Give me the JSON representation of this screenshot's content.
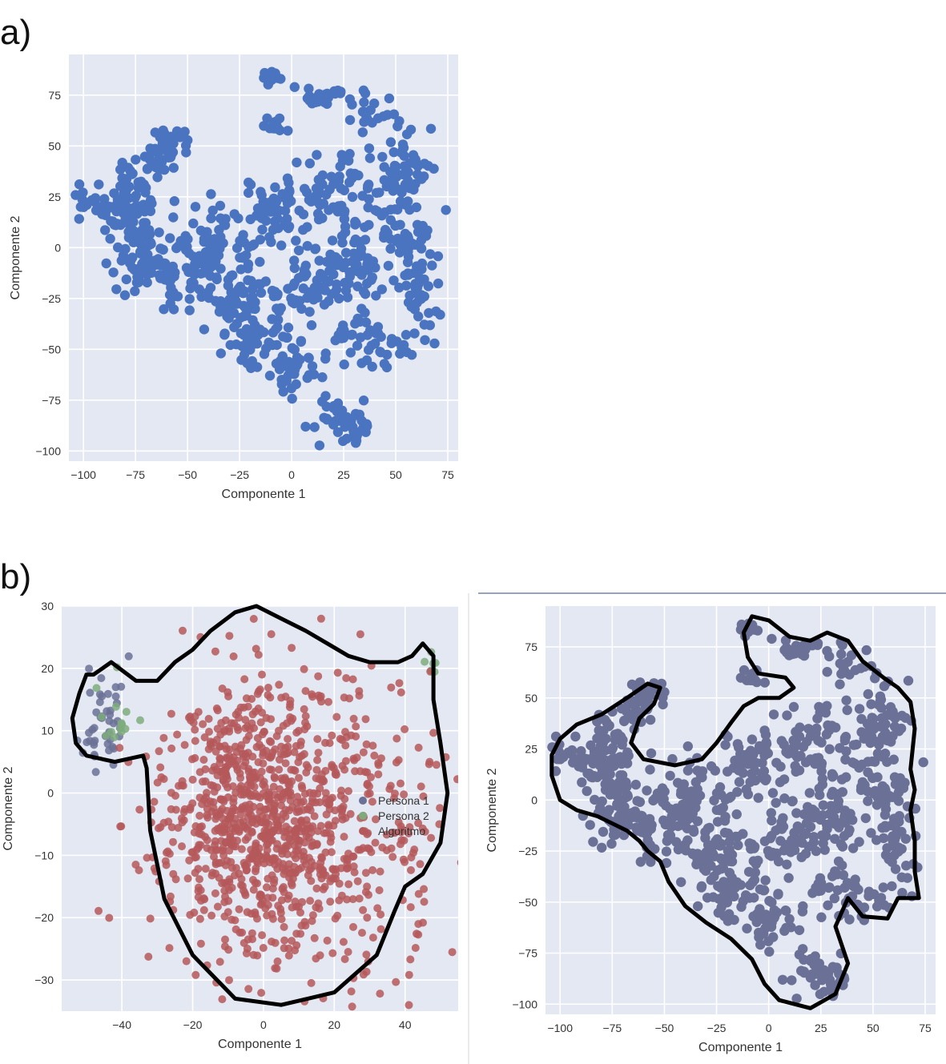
{
  "panel_labels": {
    "a": "a)",
    "b": "b)"
  },
  "chart_data": [
    {
      "id": "a",
      "type": "scatter",
      "title": "",
      "xlabel": "Componente 1",
      "ylabel": "Componente 2",
      "xlim": [
        -107,
        80
      ],
      "ylim": [
        -105,
        95
      ],
      "xticks": [
        -100,
        -75,
        -50,
        -25,
        0,
        25,
        50,
        75
      ],
      "yticks": [
        -100,
        -75,
        -50,
        -25,
        0,
        25,
        50,
        75
      ],
      "grid": true,
      "background": "#e4e8f2",
      "point_color": "#4a74c0",
      "series": [
        {
          "clusters": [
            {
              "cx": -90,
              "cy": 20,
              "sx": 7,
              "sy": 6,
              "n": 40
            },
            {
              "cx": -75,
              "cy": 32,
              "sx": 6,
              "sy": 6,
              "n": 35
            },
            {
              "cx": -60,
              "cy": 47,
              "sx": 5,
              "sy": 6,
              "n": 40
            },
            {
              "cx": -75,
              "cy": 5,
              "sx": 7,
              "sy": 10,
              "n": 55
            },
            {
              "cx": -70,
              "cy": -10,
              "sx": 8,
              "sy": 6,
              "n": 45
            },
            {
              "cx": -48,
              "cy": -15,
              "sx": 8,
              "sy": 10,
              "n": 50
            },
            {
              "cx": -35,
              "cy": 5,
              "sx": 7,
              "sy": 9,
              "n": 45
            },
            {
              "cx": -25,
              "cy": -25,
              "sx": 8,
              "sy": 10,
              "n": 55
            },
            {
              "cx": -15,
              "cy": -45,
              "sx": 10,
              "sy": 7,
              "n": 45
            },
            {
              "cx": -5,
              "cy": 15,
              "sx": 10,
              "sy": 10,
              "n": 60
            },
            {
              "cx": 5,
              "cy": -20,
              "sx": 10,
              "sy": 10,
              "n": 60
            },
            {
              "cx": 0,
              "cy": -62,
              "sx": 8,
              "sy": 7,
              "n": 35
            },
            {
              "cx": 25,
              "cy": -87,
              "sx": 8,
              "sy": 5,
              "n": 45
            },
            {
              "cx": 25,
              "cy": 25,
              "sx": 12,
              "sy": 10,
              "n": 70
            },
            {
              "cx": 30,
              "cy": -10,
              "sx": 10,
              "sy": 10,
              "n": 55
            },
            {
              "cx": 40,
              "cy": -45,
              "sx": 10,
              "sy": 7,
              "n": 45
            },
            {
              "cx": 55,
              "cy": 40,
              "sx": 8,
              "sy": 10,
              "n": 50
            },
            {
              "cx": 62,
              "cy": -25,
              "sx": 5,
              "sy": 12,
              "n": 40
            },
            {
              "cx": 55,
              "cy": 5,
              "sx": 7,
              "sy": 10,
              "n": 40
            },
            {
              "cx": -10,
              "cy": 84,
              "sx": 2,
              "sy": 2,
              "n": 20
            },
            {
              "cx": 17,
              "cy": 74,
              "sx": 6,
              "sy": 3,
              "n": 25
            },
            {
              "cx": -8,
              "cy": 60,
              "sx": 3,
              "sy": 3,
              "n": 15
            },
            {
              "cx": 38,
              "cy": 65,
              "sx": 5,
              "sy": 5,
              "n": 20
            }
          ]
        }
      ]
    },
    {
      "id": "b-left",
      "type": "scatter",
      "title": "",
      "xlabel": "Componente 1",
      "ylabel": "Componente 2",
      "xlim": [
        -57,
        55
      ],
      "ylim": [
        -35,
        30
      ],
      "xticks": [
        -40,
        -20,
        0,
        20,
        40
      ],
      "yticks": [
        -30,
        -20,
        -10,
        0,
        10,
        20,
        30
      ],
      "grid": true,
      "background": "#e4e8f2",
      "legend": {
        "placement": "bottom-right"
      },
      "series": [
        {
          "name": "Persona 1",
          "color": "#6b7196",
          "clusters": [
            {
              "cx": -45,
              "cy": 12,
              "sx": 3,
              "sy": 5,
              "n": 45
            }
          ]
        },
        {
          "name": "Persona 2",
          "color": "#7eab7c",
          "clusters": [
            {
              "cx": -42,
              "cy": 12,
              "sx": 3,
              "sy": 3,
              "n": 14
            },
            {
              "cx": 48,
              "cy": 21,
              "sx": 1,
              "sy": 1,
              "n": 6
            }
          ]
        },
        {
          "name": "Algoritmo",
          "color": "#b5585a",
          "clusters": [
            {
              "cx": -5,
              "cy": -3,
              "sx": 10,
              "sy": 10,
              "n": 450
            },
            {
              "cx": 10,
              "cy": -5,
              "sx": 20,
              "sy": 12,
              "n": 650
            }
          ]
        }
      ]
    },
    {
      "id": "b-right",
      "type": "scatter",
      "title": "",
      "xlabel": "Componente 1",
      "ylabel": "Componente 2",
      "xlim": [
        -107,
        80
      ],
      "ylim": [
        -105,
        95
      ],
      "xticks": [
        -100,
        -75,
        -50,
        -25,
        0,
        25,
        50,
        75
      ],
      "yticks": [
        -100,
        -75,
        -50,
        -25,
        0,
        25,
        50,
        75
      ],
      "grid": true,
      "background": "#e4e8f2",
      "point_color": "#6b7196",
      "series": [
        {
          "clusters": "same-as-a"
        }
      ]
    }
  ]
}
